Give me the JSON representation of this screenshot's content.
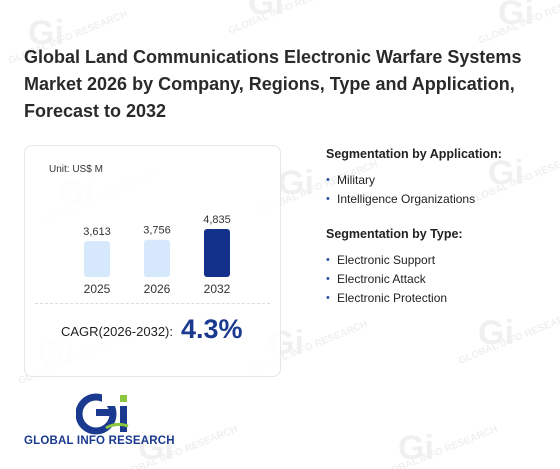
{
  "title": "Global Land Communications Electronic Warfare Systems Market 2026 by Company, Regions, Type and Application, Forecast to 2032",
  "chart_data": {
    "type": "bar",
    "unit_label": "Unit: US$ M",
    "categories": [
      "2025",
      "2026",
      "2032"
    ],
    "values": [
      3613,
      3756,
      4835
    ],
    "value_labels": [
      "3,613",
      "3,756",
      "4,835"
    ],
    "bar_colors": [
      "#d6e8fb",
      "#d6e8fb",
      "#13308a"
    ],
    "cagr_label": "CAGR(2026-2032):",
    "cagr_value": "4.3%"
  },
  "segmentation_application": {
    "heading": "Segmentation by Application:",
    "items": [
      "Military",
      "Intelligence Organizations"
    ]
  },
  "segmentation_type": {
    "heading": "Segmentation by Type:",
    "items": [
      "Electronic Support",
      "Electronic Attack",
      "Electronic Protection"
    ]
  },
  "logo": {
    "text": "GLOBAL INFO RESEARCH",
    "watermark_text": "GLOBAL INFO RESEARCH"
  },
  "colors": {
    "accent": "#1a3a8f",
    "logo_green": "#8cc63f"
  }
}
